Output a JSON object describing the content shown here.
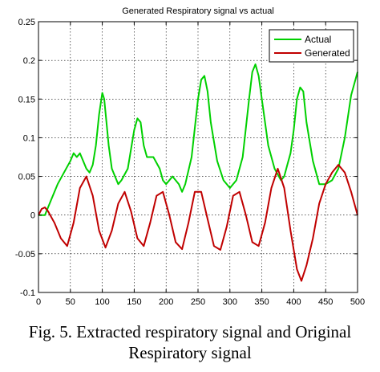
{
  "chart_data": {
    "type": "line",
    "title": "Generated Respiratory signal vs actual",
    "xlabel": "",
    "ylabel": "",
    "xlim": [
      0,
      500
    ],
    "ylim": [
      -0.1,
      0.25
    ],
    "xticks": [
      "0",
      "50",
      "100",
      "150",
      "200",
      "250",
      "300",
      "350",
      "400",
      "450",
      "500"
    ],
    "yticks": [
      "-0.1",
      "-0.05",
      "0",
      "0.05",
      "0.1",
      "0.15",
      "0.2",
      "0.25"
    ],
    "grid": true,
    "legend_position": "top-right",
    "series": [
      {
        "name": "Actual",
        "color": "#00d000",
        "x": [
          0,
          10,
          20,
          30,
          40,
          50,
          55,
          60,
          65,
          70,
          75,
          80,
          85,
          90,
          95,
          100,
          103,
          110,
          115,
          120,
          125,
          130,
          140,
          150,
          155,
          160,
          165,
          170,
          180,
          190,
          195,
          200,
          210,
          220,
          225,
          230,
          240,
          250,
          255,
          260,
          265,
          270,
          280,
          290,
          300,
          310,
          320,
          330,
          335,
          340,
          345,
          350,
          360,
          370,
          380,
          385,
          390,
          395,
          400,
          405,
          410,
          415,
          420,
          430,
          440,
          450,
          460,
          470,
          480,
          490,
          500
        ],
        "y": [
          0.0,
          0.0,
          0.02,
          0.04,
          0.055,
          0.07,
          0.08,
          0.075,
          0.08,
          0.07,
          0.06,
          0.055,
          0.065,
          0.09,
          0.13,
          0.158,
          0.15,
          0.09,
          0.06,
          0.05,
          0.04,
          0.045,
          0.06,
          0.11,
          0.125,
          0.12,
          0.09,
          0.075,
          0.075,
          0.06,
          0.045,
          0.04,
          0.05,
          0.04,
          0.03,
          0.04,
          0.075,
          0.15,
          0.175,
          0.18,
          0.16,
          0.12,
          0.07,
          0.045,
          0.035,
          0.045,
          0.075,
          0.15,
          0.185,
          0.195,
          0.18,
          0.15,
          0.09,
          0.06,
          0.045,
          0.05,
          0.065,
          0.08,
          0.11,
          0.15,
          0.165,
          0.16,
          0.12,
          0.07,
          0.04,
          0.04,
          0.045,
          0.06,
          0.1,
          0.155,
          0.185
        ]
      },
      {
        "name": "Generated",
        "color": "#c00000",
        "x": [
          0,
          5,
          10,
          15,
          25,
          35,
          45,
          55,
          65,
          75,
          85,
          95,
          105,
          115,
          125,
          135,
          145,
          155,
          165,
          175,
          185,
          195,
          205,
          215,
          225,
          235,
          245,
          255,
          265,
          275,
          285,
          295,
          305,
          315,
          325,
          335,
          345,
          355,
          365,
          375,
          385,
          395,
          405,
          412,
          420,
          430,
          440,
          450,
          460,
          470,
          480,
          490,
          500
        ],
        "y": [
          0.0,
          0.008,
          0.01,
          0.005,
          -0.01,
          -0.03,
          -0.04,
          -0.01,
          0.035,
          0.05,
          0.025,
          -0.02,
          -0.042,
          -0.02,
          0.015,
          0.03,
          0.005,
          -0.03,
          -0.04,
          -0.01,
          0.025,
          0.03,
          0.0,
          -0.035,
          -0.044,
          -0.01,
          0.03,
          0.03,
          -0.005,
          -0.04,
          -0.045,
          -0.015,
          0.025,
          0.03,
          0.0,
          -0.035,
          -0.04,
          -0.01,
          0.035,
          0.06,
          0.035,
          -0.02,
          -0.07,
          -0.085,
          -0.065,
          -0.03,
          0.015,
          0.04,
          0.055,
          0.065,
          0.055,
          0.03,
          0.0
        ]
      }
    ]
  },
  "caption": {
    "line1": "Fig. 5. Extracted  respiratory signal and Original",
    "line2": "Respiratory signal"
  }
}
